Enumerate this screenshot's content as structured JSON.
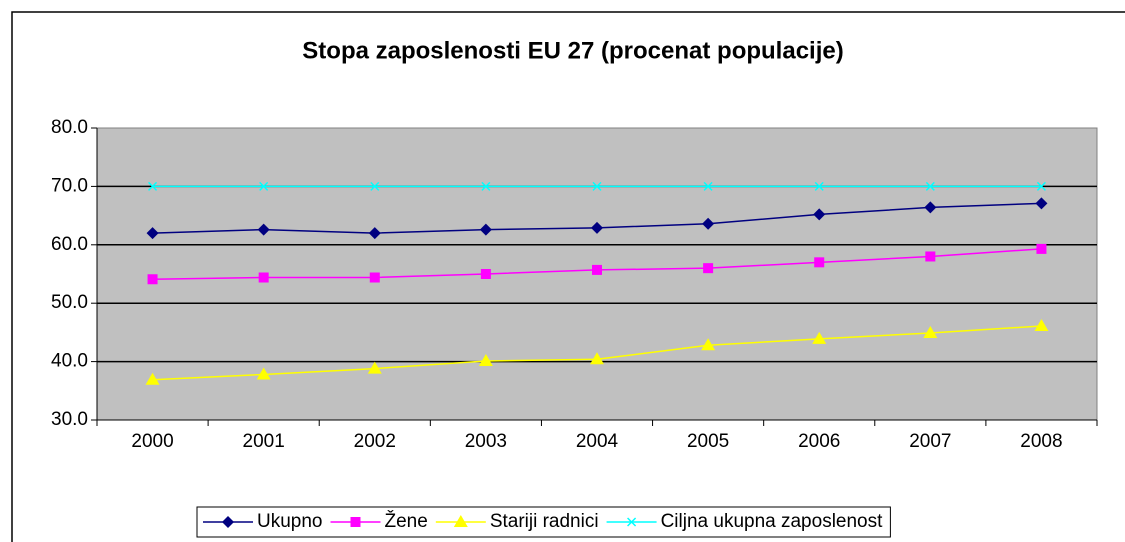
{
  "chart_data": {
    "type": "line",
    "title": "Stopa zaposlenosti EU 27 (procenat populacije)",
    "categories": [
      "2000",
      "2001",
      "2002",
      "2003",
      "2004",
      "2005",
      "2006",
      "2007",
      "2008"
    ],
    "series": [
      {
        "name": "Ukupno",
        "color": "#000080",
        "marker": "diamond",
        "values": [
          62.0,
          62.6,
          62.0,
          62.6,
          62.9,
          63.6,
          65.2,
          66.4,
          67.1
        ]
      },
      {
        "name": "Žene",
        "color": "#ff00ff",
        "marker": "square",
        "values": [
          54.1,
          54.4,
          54.4,
          55.0,
          55.7,
          56.0,
          57.0,
          58.0,
          59.3
        ]
      },
      {
        "name": "Stariji radnici",
        "color": "#ffff00",
        "marker": "triangle",
        "values": [
          36.9,
          37.8,
          38.8,
          40.1,
          40.4,
          42.8,
          43.9,
          44.9,
          46.1
        ]
      },
      {
        "name": "Ciljna ukupna zaposlenost",
        "color": "#00ffff",
        "marker": "x",
        "values": [
          70,
          70,
          70,
          70,
          70,
          70,
          70,
          70,
          70
        ]
      }
    ],
    "ylim": [
      30,
      80
    ],
    "yticks": [
      {
        "value": 30,
        "label": "30.0"
      },
      {
        "value": 40,
        "label": "40.0"
      },
      {
        "value": 50,
        "label": "50.0"
      },
      {
        "value": 60,
        "label": "60.0"
      },
      {
        "value": 70,
        "label": "70.0"
      },
      {
        "value": 80,
        "label": "80.0"
      }
    ],
    "grid": true,
    "legend": "bottom"
  }
}
